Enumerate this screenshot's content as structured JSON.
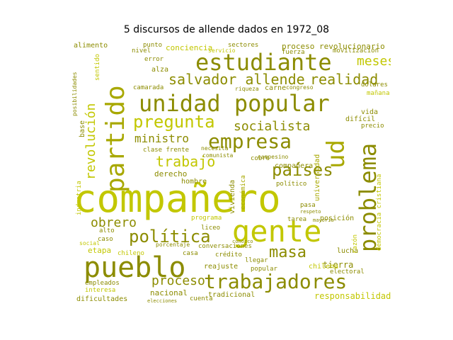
{
  "title": "5 discursos de allende dados en 1972_08",
  "words": {
    "companero": "compañero",
    "gente": "gente",
    "pueblo": "pueblo",
    "trabajadores": "trabajadores",
    "unidad_popular": "unidad popular",
    "estudiante": "estudiante",
    "partido": "partido",
    "problema": "problema",
    "empresa": "empresa",
    "pregunta": "pregunta",
    "salvador_allende": "salvador allende",
    "realidad": "realidad",
    "paises": "países",
    "politica": "política",
    "masa": "masa",
    "socialista": "socialista",
    "trabajo": "trabajo",
    "revolucion": "revolución",
    "obrero": "obrero",
    "proceso": "proceso",
    "ud": "ud",
    "ministro": "ministro",
    "meses": "meses",
    "proceso_revolucionario": "proceso revolucionario",
    "conciencia": "conciencia",
    "sectores": "sectores",
    "responsabilidad": "responsabilidad",
    "tierra": "tierra",
    "lucha": "lucha",
    "nacional": "nacional",
    "dificultades": "dificultades",
    "etapa": "etapa",
    "alto": "alto",
    "caso": "caso",
    "derecho": "derecho",
    "companera": "compañera",
    "universidad": "universidad",
    "democracia_cristiana": "democracia cristiana",
    "vivienda": "vivienda",
    "economica": "económica",
    "posicion": "posición",
    "conversaciones": "conversaciones",
    "reajuste": "reajuste",
    "credito": "crédito",
    "tradicional": "tradicional",
    "cuenta": "cuenta",
    "elecciones": "elecciones",
    "interesa": "interesa",
    "empleados": "empleados",
    "chileno": "chileno",
    "social": "social",
    "industria": "industria",
    "alimento": "alimento",
    "error": "error",
    "alza": "alza",
    "camarada": "camarada",
    "fuerza": "fuerza",
    "movilizacion": "movilización",
    "dolares": "dólares",
    "manana": "mañana",
    "vida": "vida",
    "dificil": "difícil",
    "precio": "precio",
    "base": "base",
    "clase_frente": "clase frente",
    "hombre": "hombre",
    "conozco": "conozco",
    "programa": "programa",
    "politico": "político",
    "razon": "razón",
    "tarea": "tarea",
    "liceo": "liceo",
    "casa": "casa",
    "llegar": "llegar",
    "popular": "popular",
    "electoral": "electoral",
    "carne": "carne",
    "nivel": "nivel",
    "riqueza": "riqueza",
    "necesita": "necesita",
    "comunista": "comunista",
    "cobre": "cobre",
    "campesino": "campesino",
    "congreso": "congreso",
    "pasa": "pasa",
    "respeto": "respeto",
    "porcentaje": "porcentaje",
    "mayoria": "mayoría",
    "chilena": "chilena",
    "sentido": "sentido",
    "posibilidades": "posibilidades",
    "servicio": "servicio",
    "punto": "punto"
  }
}
